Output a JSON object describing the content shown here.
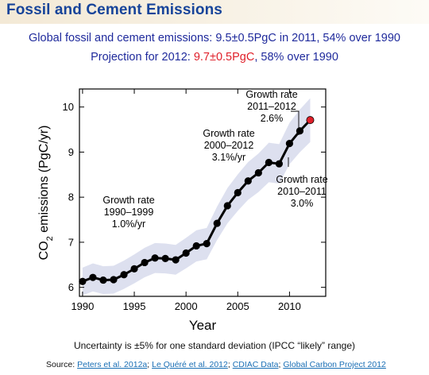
{
  "slide": {
    "title": "Fossil and Cement Emissions",
    "subtitle_line1": "Global fossil and cement emissions: 9.5±0.5PgC in 2011, 54% over 1990",
    "subtitle_line2_prefix": "Projection for 2012: ",
    "subtitle_line2_highlight": "9.7±0.5PgC",
    "subtitle_line2_suffix": ", 58% over 1990",
    "footnote": "Uncertainty is ±5% for one standard deviation (IPCC “likely” range)",
    "source_label": "Source:",
    "sources": [
      "Peters et al. 2012a",
      "Le Quéré et al. 2012",
      "CDIAC Data",
      "Global Carbon Project 2012"
    ]
  },
  "chart_data": {
    "type": "line",
    "xlabel": "Year",
    "ylabel_main": "CO",
    "ylabel_sub": "2",
    "ylabel_rest": " emissions (PgC/yr)",
    "xlim": [
      1989.7,
      2013.5
    ],
    "ylim": [
      5.8,
      10.4
    ],
    "xticks": [
      1990,
      1995,
      2000,
      2005,
      2010
    ],
    "yticks": [
      6,
      7,
      8,
      9,
      10
    ],
    "uncertainty_band": "±5%",
    "band_color": "#dde0ef",
    "line_color": "#000000",
    "projection_color": "#e0202a",
    "series": [
      {
        "x": [
          1990,
          1991,
          1992,
          1993,
          1994,
          1995,
          1996,
          1997,
          1998,
          1999,
          2000,
          2001,
          2002,
          2003,
          2004,
          2005,
          2006,
          2007,
          2008,
          2009,
          2010,
          2011
        ],
        "values": [
          6.13,
          6.22,
          6.16,
          6.17,
          6.28,
          6.41,
          6.55,
          6.65,
          6.64,
          6.61,
          6.76,
          6.92,
          6.97,
          7.42,
          7.81,
          8.1,
          8.36,
          8.54,
          8.77,
          8.74,
          9.19,
          9.47
        ]
      }
    ],
    "projection": {
      "x": 2012,
      "value": 9.71
    },
    "annotations": [
      {
        "lines": [
          "Growth rate",
          "1990–1999",
          "1.0%/yr"
        ]
      },
      {
        "lines": [
          "Growth rate",
          "2000–2012",
          "3.1%/yr"
        ]
      },
      {
        "lines": [
          "Growth rate",
          "2011–2012",
          "2.6%"
        ]
      },
      {
        "lines": [
          "Growth rate",
          "2010–2011",
          "3.0%"
        ]
      }
    ]
  }
}
